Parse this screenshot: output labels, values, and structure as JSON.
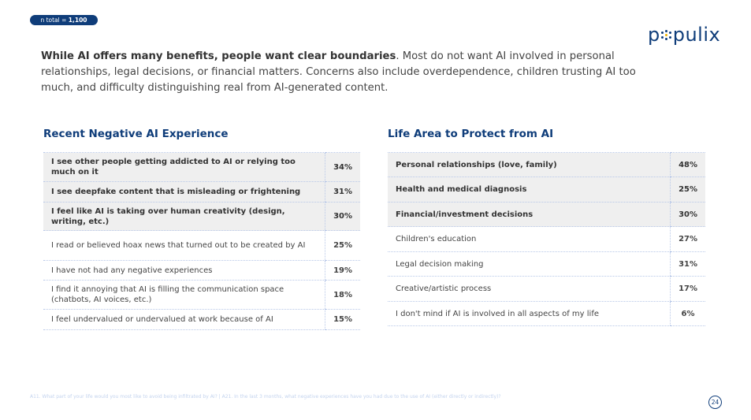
{
  "badge": {
    "prefix": "n total = ",
    "value": "1,100"
  },
  "logo": {
    "text_left": "p",
    "text_right": "pulix",
    "brand_color": "#0f3d7a",
    "accent_color": "#f0b400"
  },
  "intro": {
    "bold": "While AI offers many benefits, people want clear boundaries",
    "rest": ". Most do not want AI involved in personal relationships, legal decisions, or financial matters. Concerns also include overdependence, children trusting AI too much, and difficulty distinguishing real from AI-generated content."
  },
  "left": {
    "title": "Recent Negative AI Experience",
    "rows": [
      {
        "label": "I see other people getting addicted to AI or relying too much on it",
        "value": "34%",
        "highlight": true
      },
      {
        "label": "I see deepfake content that is misleading or frightening",
        "value": "31%",
        "highlight": true
      },
      {
        "label": "I feel like AI is taking over human creativity (design, writing, etc.)",
        "value": "30%",
        "highlight": true
      },
      {
        "label": "I read or believed hoax news that turned out to be created by AI",
        "value": "25%",
        "highlight": false
      },
      {
        "label": "I have not had any negative experiences",
        "value": "19%",
        "highlight": false
      },
      {
        "label": "I find it annoying that AI is filling the communication space (chatbots, AI voices, etc.)",
        "value": "18%",
        "highlight": false
      },
      {
        "label": "I feel undervalued or undervalued at work because of AI",
        "value": "15%",
        "highlight": false
      }
    ]
  },
  "right": {
    "title": "Life Area to Protect from AI",
    "rows": [
      {
        "label": "Personal relationships (love, family)",
        "value": "48%",
        "highlight": true
      },
      {
        "label": "Health and medical diagnosis",
        "value": "25%",
        "highlight": true
      },
      {
        "label": "Financial/investment decisions",
        "value": "30%",
        "highlight": true
      },
      {
        "label": "Children's education",
        "value": "27%",
        "highlight": false
      },
      {
        "label": "Legal decision making",
        "value": "31%",
        "highlight": false
      },
      {
        "label": "Creative/artistic process",
        "value": "17%",
        "highlight": false
      },
      {
        "label": "I don't mind if AI is involved in all aspects of my life",
        "value": "6%",
        "highlight": false
      }
    ]
  },
  "footnote": "A11. What part of your life would you most like to avoid being infiltrated by AI? | A21. In the last 3 months, what negative experiences have you had due to the use of AI (either directly or indirectly)?",
  "page_number": "24"
}
